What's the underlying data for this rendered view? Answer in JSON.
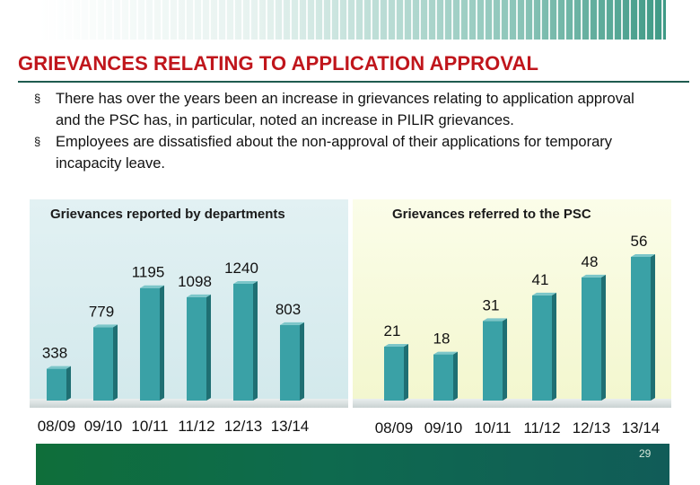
{
  "slide": {
    "title": "GRIEVANCES RELATING TO APPLICATION APPROVAL",
    "bullet_symbol": "§",
    "bullets": [
      "There has over the years been an increase in grievances relating to application approval and the PSC has, in particular, noted an increase in PILIR grievances.",
      "Employees are dissatisfied about the non-approval of their applications for temporary incapacity leave."
    ],
    "page_number": "29"
  },
  "colors": {
    "title": "#c0161c",
    "bar_front": "#3aa1a6",
    "bar_side": "#1f6f73",
    "bar_top": "#7cc6c9",
    "left_panel": "#dceff1",
    "right_panel": "#f7f9dc",
    "footer": "#0f6e3a"
  },
  "chart_data": [
    {
      "type": "bar",
      "title": "Grievances reported by departments",
      "categories": [
        "08/09",
        "09/10",
        "10/11",
        "11/12",
        "12/13",
        "13/14"
      ],
      "values": [
        338,
        779,
        1195,
        1098,
        1240,
        803
      ],
      "ylim": [
        0,
        1300
      ],
      "grid": false,
      "legend": "none"
    },
    {
      "type": "bar",
      "title": "Grievances referred to the PSC",
      "categories": [
        "08/09",
        "09/10",
        "10/11",
        "11/12",
        "12/13",
        "13/14"
      ],
      "values": [
        21,
        18,
        31,
        41,
        48,
        56
      ],
      "ylim": [
        0,
        60
      ],
      "grid": false,
      "legend": "none"
    }
  ]
}
